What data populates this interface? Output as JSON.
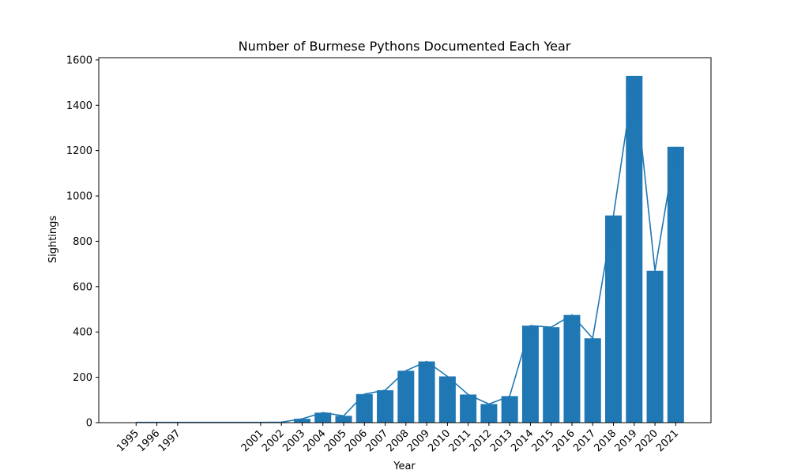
{
  "chart_data": {
    "type": "bar",
    "title": "Number of Burmese Pythons Documented Each Year",
    "xlabel": "Year",
    "ylabel": "Sightings",
    "x": [
      1995,
      1996,
      1997,
      2001,
      2002,
      2003,
      2004,
      2005,
      2006,
      2007,
      2008,
      2009,
      2010,
      2011,
      2012,
      2013,
      2014,
      2015,
      2016,
      2017,
      2018,
      2019,
      2020,
      2021
    ],
    "categories": [
      "1995",
      "1996",
      "1997",
      "2001",
      "2002",
      "2003",
      "2004",
      "2005",
      "2006",
      "2007",
      "2008",
      "2009",
      "2010",
      "2011",
      "2012",
      "2013",
      "2014",
      "2015",
      "2016",
      "2017",
      "2018",
      "2019",
      "2020",
      "2021"
    ],
    "values": [
      1,
      1,
      1,
      1,
      2,
      17,
      44,
      30,
      126,
      143,
      229,
      270,
      204,
      124,
      82,
      117,
      428,
      421,
      475,
      372,
      914,
      1530,
      670,
      1217
    ],
    "overlay_line": true,
    "xlim": [
      1993.2,
      2022.7
    ],
    "ylim": [
      0,
      1610
    ],
    "yticks": [
      0,
      200,
      400,
      600,
      800,
      1000,
      1200,
      1400,
      1600
    ],
    "grid": false,
    "legend": "none",
    "colors": {
      "bar": "#1f77b4",
      "line": "#1f77b4"
    }
  }
}
